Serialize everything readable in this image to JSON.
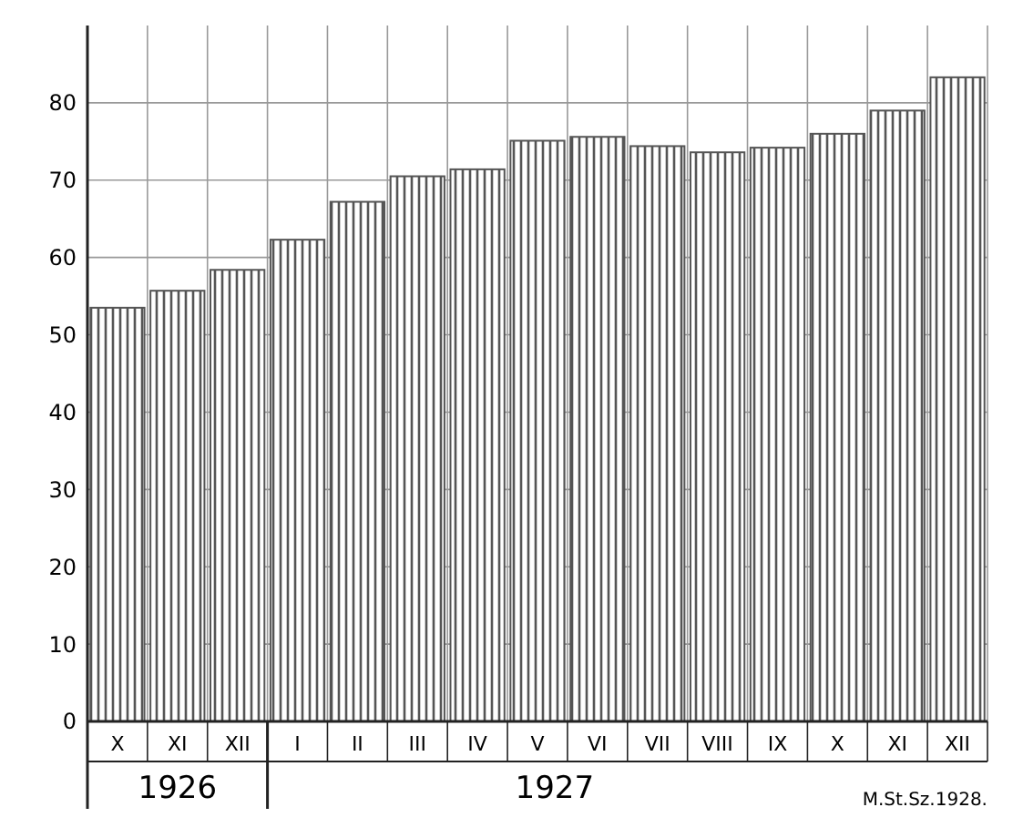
{
  "chart_data": {
    "type": "bar",
    "categories": [
      "X",
      "XI",
      "XII",
      "I",
      "II",
      "III",
      "IV",
      "V",
      "VI",
      "VII",
      "VIII",
      "IX",
      "X",
      "XI",
      "XII"
    ],
    "values": [
      53.5,
      55.7,
      58.4,
      62.3,
      67.2,
      70.5,
      71.4,
      75.1,
      75.6,
      74.4,
      73.6,
      74.2,
      76,
      79,
      83.3
    ],
    "color": "#555555",
    "ylim": [
      0,
      90
    ],
    "yticks": [
      0,
      10,
      20,
      30,
      40,
      50,
      60,
      70,
      80
    ],
    "grid": true,
    "annotations": [
      "1926",
      "1927",
      "M.St.Sz.1928."
    ]
  }
}
